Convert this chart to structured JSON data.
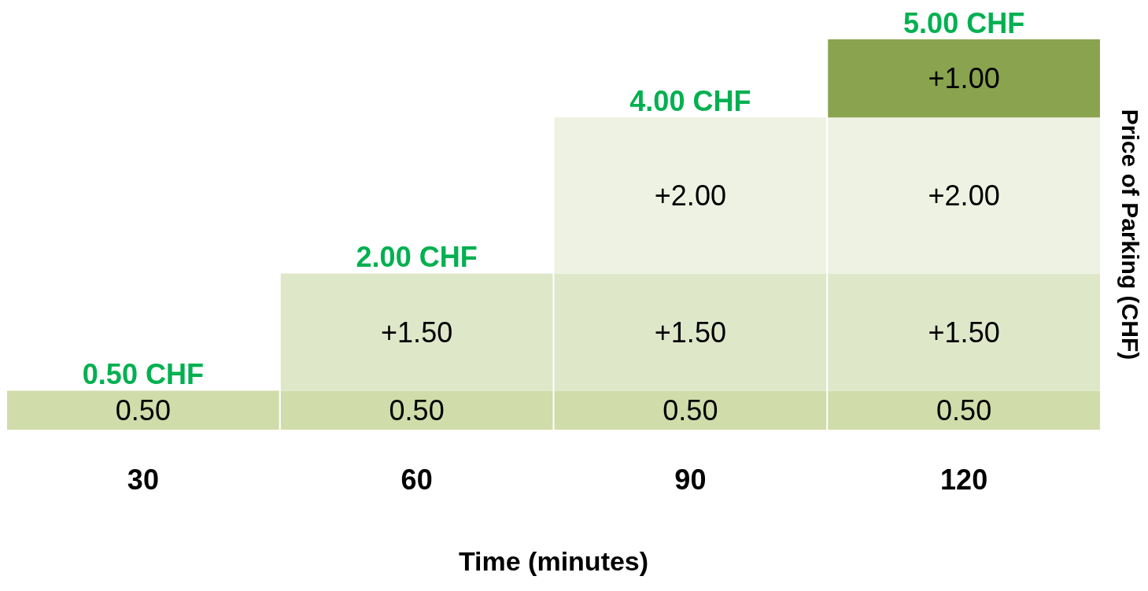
{
  "chart_data": {
    "type": "bar",
    "stacked": true,
    "xlabel": "Time (minutes)",
    "ylabel": "Price of Parking (CHF)",
    "categories": [
      "30",
      "60",
      "90",
      "120"
    ],
    "series": [
      {
        "color": "#d0dcaa",
        "values": [
          0.5,
          0.5,
          0.5,
          0.5
        ],
        "value_labels": [
          "0.50",
          "0.50",
          "0.50",
          "0.50"
        ]
      },
      {
        "color": "#dfe7c9",
        "values": [
          null,
          1.5,
          1.5,
          1.5
        ],
        "value_labels": [
          null,
          "+1.50",
          "+1.50",
          "+1.50"
        ]
      },
      {
        "color": "#eef2e2",
        "values": [
          null,
          null,
          2.0,
          2.0
        ],
        "value_labels": [
          null,
          null,
          "+2.00",
          "+2.00"
        ]
      },
      {
        "color": "#8aa34e",
        "values": [
          null,
          null,
          null,
          1.0
        ],
        "value_labels": [
          null,
          null,
          null,
          "+1.00"
        ]
      }
    ],
    "totals": [
      "0.50 CHF",
      "2.00 CHF",
      "4.00 CHF",
      "5.00 CHF"
    ],
    "grid": false
  }
}
